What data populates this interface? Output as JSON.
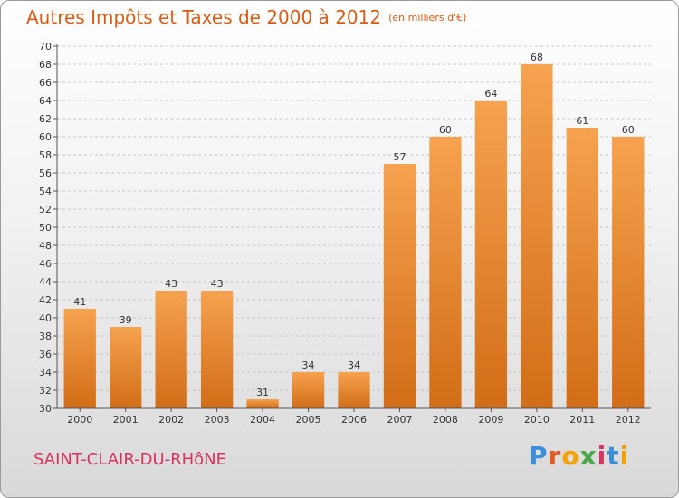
{
  "header": {
    "title": "Autres Impôts et Taxes de 2000 à 2012",
    "unit": "(en milliers d'€)"
  },
  "footer": {
    "town": "SAINT-CLAIR-DU-RHôNE",
    "brand": "Proxiti",
    "brand_colors": [
      "#3a8fd6",
      "#e25a21",
      "#f2a300",
      "#4aa84a",
      "#d8335e",
      "#3a8fd6",
      "#f2a300"
    ]
  },
  "colors": {
    "bar_top": "#f6a24f",
    "bar_bottom": "#d26d17",
    "title": "#d85c16",
    "town": "#d8335e",
    "grid": "#c4c4c4"
  },
  "chart_data": {
    "type": "bar",
    "title": "Autres Impôts et Taxes de 2000 à 2012",
    "subtitle": "(en milliers d'€)",
    "categories": [
      "2000",
      "2001",
      "2002",
      "2003",
      "2004",
      "2005",
      "2006",
      "2007",
      "2008",
      "2009",
      "2010",
      "2011",
      "2012"
    ],
    "values": [
      41,
      39,
      43,
      43,
      31,
      34,
      34,
      57,
      60,
      64,
      68,
      61,
      60
    ],
    "ylim": [
      30,
      70
    ],
    "ytick_step": 2,
    "grid": true
  }
}
